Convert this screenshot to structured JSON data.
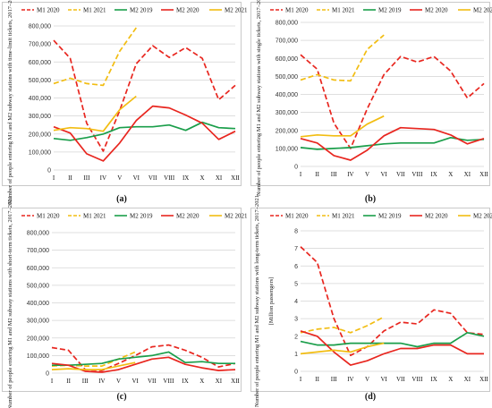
{
  "chart_data": [
    {
      "type": "line",
      "panel_label": "(a)",
      "ylabel": "Number of people entering M1 and M2 subway stations with time-limit tickets, 2017–2021",
      "categories": [
        "I",
        "II",
        "III",
        "IV",
        "V",
        "VI",
        "VII",
        "VIII",
        "IX",
        "X",
        "XI",
        "XII"
      ],
      "ylim": [
        0,
        800000
      ],
      "yticks": [
        "0",
        "100,000",
        "200,000",
        "300,000",
        "400,000",
        "500,000",
        "600,000",
        "700,000",
        "800,000"
      ],
      "series": [
        {
          "name": "M1 2020",
          "color": "#e8261f",
          "dash": true,
          "values": [
            720000,
            620000,
            260000,
            105000,
            330000,
            590000,
            690000,
            625000,
            680000,
            620000,
            390000,
            470000
          ]
        },
        {
          "name": "M1 2021",
          "color": "#f2bd12",
          "dash": true,
          "values": [
            480000,
            510000,
            480000,
            470000,
            660000,
            790000,
            null,
            null,
            null,
            null,
            null,
            null
          ]
        },
        {
          "name": "M2 2019",
          "color": "#1a9e4a",
          "dash": false,
          "values": [
            175000,
            165000,
            180000,
            200000,
            235000,
            240000,
            240000,
            250000,
            220000,
            265000,
            235000,
            230000
          ]
        },
        {
          "name": "M2 2020",
          "color": "#e8261f",
          "dash": false,
          "values": [
            240000,
            205000,
            90000,
            50000,
            150000,
            275000,
            355000,
            345000,
            305000,
            260000,
            170000,
            215000
          ]
        },
        {
          "name": "M2 2021",
          "color": "#f2bd12",
          "dash": false,
          "values": [
            220000,
            235000,
            230000,
            215000,
            335000,
            410000,
            null,
            null,
            null,
            null,
            null,
            null
          ]
        }
      ]
    },
    {
      "type": "line",
      "panel_label": "(b)",
      "ylabel": "Number of people entering M1 and M2 subway stations with single tickets, 2017–2021",
      "categories": [
        "I",
        "II",
        "III",
        "IV",
        "V",
        "VI",
        "VII",
        "VIII",
        "IX",
        "X",
        "XI",
        "XII"
      ],
      "ylim": [
        0,
        800000
      ],
      "yticks": [
        "0",
        "100,000",
        "200,000",
        "300,000",
        "400,000",
        "500,000",
        "600,000",
        "700,000",
        "800,000"
      ],
      "series": [
        {
          "name": "M1 2020",
          "color": "#e8261f",
          "dash": true,
          "values": [
            620000,
            540000,
            240000,
            100000,
            320000,
            510000,
            610000,
            580000,
            610000,
            530000,
            380000,
            460000
          ]
        },
        {
          "name": "M1 2021",
          "color": "#f2bd12",
          "dash": true,
          "values": [
            480000,
            510000,
            480000,
            475000,
            650000,
            730000,
            null,
            null,
            null,
            null,
            null,
            null
          ]
        },
        {
          "name": "M2 2019",
          "color": "#1a9e4a",
          "dash": false,
          "values": [
            105000,
            95000,
            100000,
            105000,
            115000,
            125000,
            130000,
            130000,
            130000,
            160000,
            145000,
            150000
          ]
        },
        {
          "name": "M2 2020",
          "color": "#e8261f",
          "dash": false,
          "values": [
            155000,
            130000,
            60000,
            35000,
            90000,
            170000,
            215000,
            210000,
            205000,
            175000,
            125000,
            155000
          ]
        },
        {
          "name": "M2 2021",
          "color": "#f2bd12",
          "dash": false,
          "values": [
            165000,
            175000,
            170000,
            170000,
            235000,
            280000,
            null,
            null,
            null,
            null,
            null,
            null
          ]
        }
      ]
    },
    {
      "type": "line",
      "panel_label": "(c)",
      "ylabel": "Number of people entering M1 and M2 subway stations with short-term tickets, 2017–2021",
      "categories": [
        "I",
        "II",
        "III",
        "IV",
        "V",
        "VI",
        "VII",
        "VIII",
        "IX",
        "X",
        "XI",
        "XII"
      ],
      "ylim": [
        0,
        800000
      ],
      "yticks": [
        "0",
        "100,000",
        "200,000",
        "300,000",
        "400,000",
        "500,000",
        "600,000",
        "700,000",
        "800,000"
      ],
      "series": [
        {
          "name": "M1 2020",
          "color": "#e8261f",
          "dash": true,
          "values": [
            145000,
            130000,
            20000,
            15000,
            55000,
            100000,
            150000,
            160000,
            130000,
            90000,
            35000,
            55000
          ]
        },
        {
          "name": "M1 2021",
          "color": "#f2bd12",
          "dash": true,
          "values": [
            40000,
            45000,
            40000,
            40000,
            80000,
            120000,
            null,
            null,
            null,
            null,
            null,
            null
          ]
        },
        {
          "name": "M2 2019",
          "color": "#1a9e4a",
          "dash": false,
          "values": [
            45000,
            45000,
            50000,
            55000,
            80000,
            90000,
            100000,
            120000,
            60000,
            65000,
            55000,
            55000
          ]
        },
        {
          "name": "M2 2020",
          "color": "#e8261f",
          "dash": false,
          "values": [
            55000,
            45000,
            10000,
            5000,
            20000,
            50000,
            80000,
            90000,
            50000,
            30000,
            15000,
            20000
          ]
        },
        {
          "name": "M2 2021",
          "color": "#f2bd12",
          "dash": false,
          "values": [
            20000,
            25000,
            20000,
            20000,
            40000,
            60000,
            null,
            null,
            null,
            null,
            null,
            null
          ]
        }
      ]
    },
    {
      "type": "line",
      "panel_label": "(d)",
      "ylabel": "Number of people entering M1 and M2 subway stations with long-term tickets, 2017–2021",
      "ylabel_unit": "[Million passengers]",
      "categories": [
        "I",
        "II",
        "III",
        "IV",
        "V",
        "VI",
        "VII",
        "VIII",
        "IX",
        "X",
        "XI",
        "XII"
      ],
      "ylim": [
        0,
        8
      ],
      "yticks": [
        "0",
        "1",
        "2",
        "3",
        "4",
        "5",
        "6",
        "7",
        "8"
      ],
      "series": [
        {
          "name": "M1 2020",
          "color": "#e8261f",
          "dash": true,
          "values": [
            7.1,
            6.2,
            3.0,
            0.9,
            1.4,
            2.3,
            2.8,
            2.7,
            3.5,
            3.3,
            2.2,
            2.1
          ]
        },
        {
          "name": "M1 2021",
          "color": "#f2bd12",
          "dash": true,
          "values": [
            2.2,
            2.4,
            2.5,
            2.2,
            2.6,
            3.1,
            null,
            null,
            null,
            null,
            null,
            null
          ]
        },
        {
          "name": "M2 2019",
          "color": "#1a9e4a",
          "dash": false,
          "values": [
            1.7,
            1.5,
            1.5,
            1.6,
            1.6,
            1.6,
            1.6,
            1.4,
            1.6,
            1.6,
            2.2,
            2.0
          ]
        },
        {
          "name": "M2 2020",
          "color": "#e8261f",
          "dash": false,
          "values": [
            2.3,
            2.0,
            1.1,
            0.35,
            0.6,
            1.0,
            1.3,
            1.3,
            1.5,
            1.5,
            1.0,
            1.0
          ]
        },
        {
          "name": "M2 2021",
          "color": "#f2bd12",
          "dash": false,
          "values": [
            1.0,
            1.1,
            1.2,
            1.1,
            1.4,
            1.6,
            null,
            null,
            null,
            null,
            null,
            null
          ]
        }
      ]
    }
  ]
}
